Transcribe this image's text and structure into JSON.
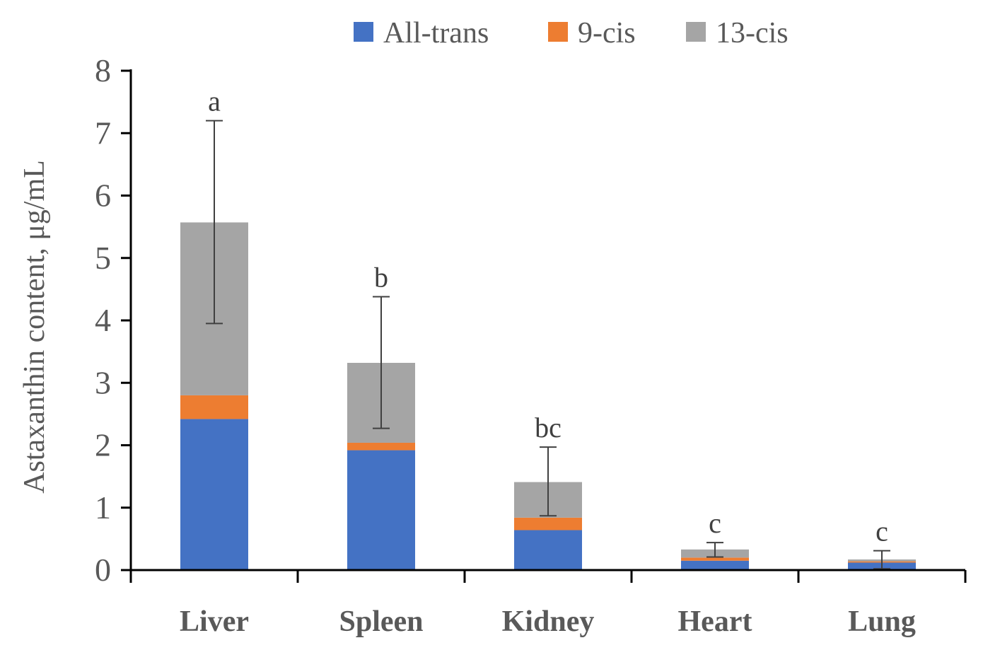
{
  "chart_data": {
    "type": "bar",
    "stacked": true,
    "title": "",
    "xlabel": "",
    "ylabel": "Astaxanthin content, μg/mL",
    "ylim": [
      0,
      8
    ],
    "yticks": [
      "0",
      "1",
      "2",
      "3",
      "4",
      "5",
      "6",
      "7",
      "8"
    ],
    "ytick_values": [
      0,
      1,
      2,
      3,
      4,
      5,
      6,
      7,
      8
    ],
    "categories": [
      "Liver",
      "Spleen",
      "Kidney",
      "Heart",
      "Lung"
    ],
    "series": [
      {
        "name": "All-trans",
        "color": "#4472C4",
        "values": [
          2.42,
          1.92,
          0.64,
          0.15,
          0.12
        ]
      },
      {
        "name": "9-cis",
        "color": "#ED7D31",
        "values": [
          0.38,
          0.12,
          0.2,
          0.05,
          0.02
        ]
      },
      {
        "name": "13-cis",
        "color": "#A5A5A5",
        "values": [
          2.77,
          1.28,
          0.57,
          0.13,
          0.03
        ]
      }
    ],
    "totals": [
      5.57,
      3.32,
      1.41,
      0.33,
      0.17
    ],
    "error_bars": [
      {
        "low": 3.95,
        "high": 7.2
      },
      {
        "low": 2.27,
        "high": 4.38
      },
      {
        "low": 0.87,
        "high": 1.97
      },
      {
        "low": 0.21,
        "high": 0.44
      },
      {
        "low": 0.02,
        "high": 0.31
      }
    ],
    "significance_labels": [
      "a",
      "b",
      "bc",
      "c",
      "c"
    ],
    "legend_position": "top-center",
    "grid": false
  }
}
